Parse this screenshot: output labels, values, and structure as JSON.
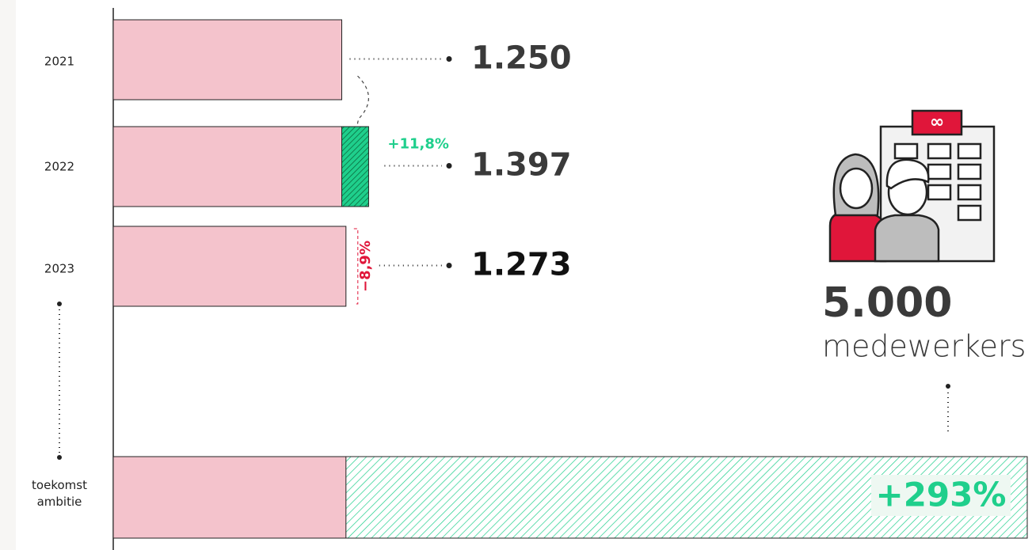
{
  "chart_data": {
    "type": "bar",
    "categories": [
      "2021",
      "2022",
      "2023",
      "toekomst ambitie"
    ],
    "values": [
      1250,
      1397,
      1273,
      5000
    ],
    "value_labels": [
      "1.250",
      "1.397",
      "1.273",
      "5.000"
    ],
    "changes": [
      null,
      11.8,
      -8.9,
      293
    ],
    "change_labels": [
      null,
      "+11,8%",
      "−8,9%",
      "+293%"
    ],
    "unit": "medewerkers",
    "colors": {
      "bar": "#f4c3cc",
      "increase": "#1fcf8c",
      "decrease": "#e0163a"
    }
  }
}
